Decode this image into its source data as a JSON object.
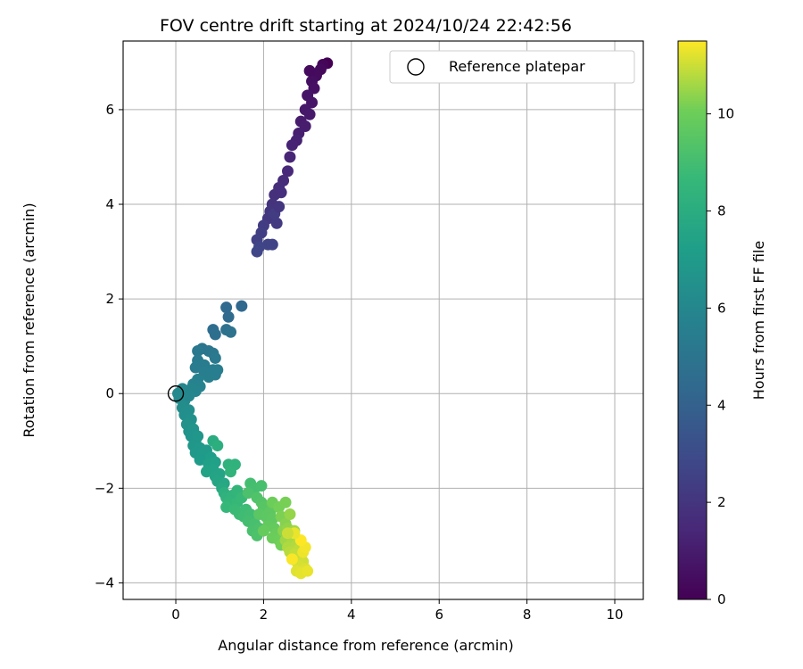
{
  "chart_data": {
    "type": "scatter",
    "title": "FOV centre drift starting at 2024/10/24 22:42:56",
    "xlabel": "Angular distance from reference (arcmin)",
    "ylabel": "Rotation from reference (arcmin)",
    "xlim": [
      -1.2,
      10.65
    ],
    "ylim": [
      -4.35,
      7.45
    ],
    "xticks": [
      0,
      2,
      4,
      6,
      8,
      10
    ],
    "yticks": [
      -4,
      -2,
      0,
      2,
      4,
      6
    ],
    "grid": true,
    "legend": {
      "position": "top-right",
      "label": "Reference platepar"
    },
    "colormap": "viridis",
    "colorbar": {
      "label": "Hours from first FF file",
      "range": [
        0,
        11.5
      ],
      "ticks": [
        0,
        2,
        4,
        6,
        8,
        10
      ]
    },
    "reference_point": {
      "x": 0,
      "y": 0
    },
    "series": [
      {
        "points": [
          {
            "x": 3.45,
            "y": 6.98,
            "h": 0.0
          },
          {
            "x": 3.35,
            "y": 6.95,
            "h": 0.2
          },
          {
            "x": 3.3,
            "y": 6.85,
            "h": 0.3
          },
          {
            "x": 3.2,
            "y": 6.72,
            "h": 0.4
          },
          {
            "x": 3.1,
            "y": 6.6,
            "h": 0.5
          },
          {
            "x": 3.15,
            "y": 6.45,
            "h": 0.6
          },
          {
            "x": 3.05,
            "y": 6.82,
            "h": 0.35
          },
          {
            "x": 3.0,
            "y": 6.3,
            "h": 0.7
          },
          {
            "x": 3.1,
            "y": 6.15,
            "h": 0.75
          },
          {
            "x": 2.95,
            "y": 6.0,
            "h": 0.85
          },
          {
            "x": 3.05,
            "y": 5.9,
            "h": 0.9
          },
          {
            "x": 2.85,
            "y": 5.75,
            "h": 1.0
          },
          {
            "x": 2.95,
            "y": 5.65,
            "h": 1.05
          },
          {
            "x": 2.8,
            "y": 5.5,
            "h": 1.1
          },
          {
            "x": 2.75,
            "y": 5.35,
            "h": 1.2
          },
          {
            "x": 2.65,
            "y": 5.25,
            "h": 1.25
          },
          {
            "x": 2.6,
            "y": 5.0,
            "h": 1.35
          },
          {
            "x": 2.55,
            "y": 4.7,
            "h": 1.5
          },
          {
            "x": 2.45,
            "y": 4.5,
            "h": 1.6
          },
          {
            "x": 2.35,
            "y": 4.35,
            "h": 1.7
          },
          {
            "x": 2.25,
            "y": 4.2,
            "h": 1.8
          },
          {
            "x": 2.2,
            "y": 4.0,
            "h": 1.9
          },
          {
            "x": 2.15,
            "y": 3.85,
            "h": 2.0
          },
          {
            "x": 2.1,
            "y": 3.7,
            "h": 2.1
          },
          {
            "x": 2.3,
            "y": 3.6,
            "h": 2.2
          },
          {
            "x": 2.0,
            "y": 3.55,
            "h": 2.3
          },
          {
            "x": 1.95,
            "y": 3.4,
            "h": 2.4
          },
          {
            "x": 1.85,
            "y": 3.25,
            "h": 2.5
          },
          {
            "x": 2.1,
            "y": 3.15,
            "h": 2.6
          },
          {
            "x": 2.2,
            "y": 3.15,
            "h": 2.6
          },
          {
            "x": 1.9,
            "y": 3.1,
            "h": 2.7
          },
          {
            "x": 1.85,
            "y": 3.0,
            "h": 2.8
          },
          {
            "x": 2.25,
            "y": 3.8,
            "h": 2.3
          },
          {
            "x": 2.35,
            "y": 3.95,
            "h": 2.0
          },
          {
            "x": 2.4,
            "y": 4.25,
            "h": 1.75
          },
          {
            "x": 1.5,
            "y": 1.85,
            "h": 4.3
          },
          {
            "x": 1.15,
            "y": 1.82,
            "h": 4.4
          },
          {
            "x": 1.2,
            "y": 1.62,
            "h": 4.5
          },
          {
            "x": 0.85,
            "y": 1.35,
            "h": 4.6
          },
          {
            "x": 0.9,
            "y": 1.25,
            "h": 4.7
          },
          {
            "x": 1.15,
            "y": 1.35,
            "h": 4.8
          },
          {
            "x": 1.25,
            "y": 1.3,
            "h": 4.9
          },
          {
            "x": 0.6,
            "y": 0.95,
            "h": 5.0
          },
          {
            "x": 0.75,
            "y": 0.9,
            "h": 5.1
          },
          {
            "x": 0.85,
            "y": 0.85,
            "h": 5.15
          },
          {
            "x": 0.5,
            "y": 0.9,
            "h": 5.2
          },
          {
            "x": 0.9,
            "y": 0.75,
            "h": 5.25
          },
          {
            "x": 0.5,
            "y": 0.7,
            "h": 5.3
          },
          {
            "x": 0.65,
            "y": 0.6,
            "h": 5.35
          },
          {
            "x": 0.45,
            "y": 0.55,
            "h": 5.4
          },
          {
            "x": 0.85,
            "y": 0.5,
            "h": 5.45
          },
          {
            "x": 0.95,
            "y": 0.5,
            "h": 5.5
          },
          {
            "x": 0.9,
            "y": 0.4,
            "h": 5.55
          },
          {
            "x": 0.65,
            "y": 0.45,
            "h": 5.5
          },
          {
            "x": 0.75,
            "y": 0.35,
            "h": 5.6
          },
          {
            "x": 0.5,
            "y": 0.3,
            "h": 5.7
          },
          {
            "x": 0.4,
            "y": 0.2,
            "h": 5.75
          },
          {
            "x": 0.55,
            "y": 0.15,
            "h": 5.8
          },
          {
            "x": 0.45,
            "y": 0.05,
            "h": 5.85
          },
          {
            "x": 0.35,
            "y": 0.1,
            "h": 5.9
          },
          {
            "x": 0.15,
            "y": 0.1,
            "h": 6.0
          },
          {
            "x": 0.05,
            "y": 0.0,
            "h": 6.1
          },
          {
            "x": 0.08,
            "y": -0.1,
            "h": 6.15
          },
          {
            "x": 0.2,
            "y": -0.15,
            "h": 6.2
          },
          {
            "x": 0.3,
            "y": -0.05,
            "h": 6.0
          },
          {
            "x": 0.15,
            "y": -0.3,
            "h": 6.3
          },
          {
            "x": 0.3,
            "y": -0.35,
            "h": 6.35
          },
          {
            "x": 0.2,
            "y": -0.45,
            "h": 6.4
          },
          {
            "x": 0.35,
            "y": -0.55,
            "h": 6.5
          },
          {
            "x": 0.25,
            "y": -0.65,
            "h": 6.55
          },
          {
            "x": 0.3,
            "y": -0.8,
            "h": 6.6
          },
          {
            "x": 0.4,
            "y": -0.75,
            "h": 6.65
          },
          {
            "x": 0.35,
            "y": -0.9,
            "h": 6.7
          },
          {
            "x": 0.45,
            "y": -1.0,
            "h": 6.75
          },
          {
            "x": 0.5,
            "y": -0.9,
            "h": 6.8
          },
          {
            "x": 0.4,
            "y": -1.1,
            "h": 6.85
          },
          {
            "x": 0.55,
            "y": -1.15,
            "h": 6.9
          },
          {
            "x": 0.45,
            "y": -1.25,
            "h": 6.95
          },
          {
            "x": 0.6,
            "y": -1.3,
            "h": 7.0
          },
          {
            "x": 0.7,
            "y": -1.2,
            "h": 7.05
          },
          {
            "x": 0.55,
            "y": -1.4,
            "h": 7.1
          },
          {
            "x": 0.8,
            "y": -1.35,
            "h": 7.2
          },
          {
            "x": 0.75,
            "y": -1.5,
            "h": 7.3
          },
          {
            "x": 0.9,
            "y": -1.45,
            "h": 7.35
          },
          {
            "x": 0.85,
            "y": -1.6,
            "h": 7.4
          },
          {
            "x": 0.7,
            "y": -1.65,
            "h": 7.45
          },
          {
            "x": 0.9,
            "y": -1.75,
            "h": 7.5
          },
          {
            "x": 1.0,
            "y": -1.7,
            "h": 7.55
          },
          {
            "x": 0.95,
            "y": -1.85,
            "h": 7.6
          },
          {
            "x": 1.1,
            "y": -1.9,
            "h": 7.7
          },
          {
            "x": 1.05,
            "y": -2.0,
            "h": 7.75
          },
          {
            "x": 0.85,
            "y": -1.0,
            "h": 8.0
          },
          {
            "x": 0.95,
            "y": -1.1,
            "h": 8.1
          },
          {
            "x": 1.2,
            "y": -1.5,
            "h": 8.3
          },
          {
            "x": 1.35,
            "y": -1.5,
            "h": 8.35
          },
          {
            "x": 1.25,
            "y": -1.65,
            "h": 8.4
          },
          {
            "x": 1.1,
            "y": -2.1,
            "h": 8.2
          },
          {
            "x": 1.15,
            "y": -2.2,
            "h": 8.3
          },
          {
            "x": 1.3,
            "y": -2.15,
            "h": 8.4
          },
          {
            "x": 1.4,
            "y": -2.05,
            "h": 8.5
          },
          {
            "x": 1.2,
            "y": -2.3,
            "h": 8.5
          },
          {
            "x": 1.15,
            "y": -2.4,
            "h": 8.6
          },
          {
            "x": 1.4,
            "y": -2.3,
            "h": 8.65
          },
          {
            "x": 1.5,
            "y": -2.2,
            "h": 8.7
          },
          {
            "x": 1.35,
            "y": -2.45,
            "h": 8.75
          },
          {
            "x": 1.45,
            "y": -2.55,
            "h": 8.8
          },
          {
            "x": 1.6,
            "y": -2.45,
            "h": 8.85
          },
          {
            "x": 1.55,
            "y": -2.6,
            "h": 8.9
          },
          {
            "x": 1.7,
            "y": -2.55,
            "h": 8.95
          },
          {
            "x": 1.65,
            "y": -2.7,
            "h": 9.0
          },
          {
            "x": 1.8,
            "y": -2.75,
            "h": 9.1
          },
          {
            "x": 1.75,
            "y": -2.9,
            "h": 9.15
          },
          {
            "x": 1.9,
            "y": -2.85,
            "h": 9.2
          },
          {
            "x": 1.85,
            "y": -3.0,
            "h": 9.25
          },
          {
            "x": 1.7,
            "y": -1.9,
            "h": 9.0
          },
          {
            "x": 1.8,
            "y": -2.0,
            "h": 9.05
          },
          {
            "x": 1.95,
            "y": -1.95,
            "h": 9.1
          },
          {
            "x": 1.65,
            "y": -2.1,
            "h": 9.2
          },
          {
            "x": 1.85,
            "y": -2.2,
            "h": 9.3
          },
          {
            "x": 1.95,
            "y": -2.3,
            "h": 9.4
          },
          {
            "x": 2.0,
            "y": -2.4,
            "h": 9.5
          },
          {
            "x": 1.9,
            "y": -2.55,
            "h": 9.55
          },
          {
            "x": 2.05,
            "y": -2.6,
            "h": 9.6
          },
          {
            "x": 2.15,
            "y": -2.5,
            "h": 9.65
          },
          {
            "x": 2.2,
            "y": -2.65,
            "h": 9.7
          },
          {
            "x": 2.1,
            "y": -2.8,
            "h": 9.75
          },
          {
            "x": 2.25,
            "y": -2.85,
            "h": 9.8
          },
          {
            "x": 2.0,
            "y": -2.9,
            "h": 9.85
          },
          {
            "x": 2.3,
            "y": -2.95,
            "h": 9.9
          },
          {
            "x": 2.2,
            "y": -3.05,
            "h": 9.95
          },
          {
            "x": 2.35,
            "y": -3.1,
            "h": 10.0
          },
          {
            "x": 2.45,
            "y": -3.0,
            "h": 10.05
          },
          {
            "x": 2.4,
            "y": -3.2,
            "h": 10.1
          },
          {
            "x": 2.2,
            "y": -2.3,
            "h": 10.0
          },
          {
            "x": 2.35,
            "y": -2.4,
            "h": 10.1
          },
          {
            "x": 2.5,
            "y": -2.3,
            "h": 10.15
          },
          {
            "x": 2.4,
            "y": -2.6,
            "h": 10.2
          },
          {
            "x": 2.5,
            "y": -2.75,
            "h": 10.3
          },
          {
            "x": 2.45,
            "y": -2.9,
            "h": 10.35
          },
          {
            "x": 2.55,
            "y": -2.85,
            "h": 10.4
          },
          {
            "x": 2.6,
            "y": -2.55,
            "h": 10.45
          },
          {
            "x": 2.6,
            "y": -3.0,
            "h": 10.5
          },
          {
            "x": 2.5,
            "y": -3.1,
            "h": 10.55
          },
          {
            "x": 2.7,
            "y": -2.9,
            "h": 10.6
          },
          {
            "x": 2.65,
            "y": -3.15,
            "h": 10.65
          },
          {
            "x": 2.55,
            "y": -3.25,
            "h": 10.7
          },
          {
            "x": 2.75,
            "y": -3.2,
            "h": 10.75
          },
          {
            "x": 2.6,
            "y": -3.35,
            "h": 10.8
          },
          {
            "x": 2.8,
            "y": -3.3,
            "h": 10.85
          },
          {
            "x": 2.7,
            "y": -3.4,
            "h": 10.9
          },
          {
            "x": 2.85,
            "y": -3.45,
            "h": 10.95
          },
          {
            "x": 2.75,
            "y": -3.55,
            "h": 11.0
          },
          {
            "x": 2.9,
            "y": -3.55,
            "h": 11.05
          },
          {
            "x": 2.8,
            "y": -3.65,
            "h": 11.1
          },
          {
            "x": 2.95,
            "y": -3.7,
            "h": 11.15
          },
          {
            "x": 2.75,
            "y": -3.75,
            "h": 11.2
          },
          {
            "x": 2.85,
            "y": -3.8,
            "h": 11.25
          },
          {
            "x": 3.0,
            "y": -3.75,
            "h": 11.3
          },
          {
            "x": 2.9,
            "y": -3.35,
            "h": 11.35
          },
          {
            "x": 2.95,
            "y": -3.25,
            "h": 11.4
          },
          {
            "x": 2.65,
            "y": -3.5,
            "h": 11.45
          },
          {
            "x": 2.85,
            "y": -3.1,
            "h": 11.5
          },
          {
            "x": 2.7,
            "y": -2.95,
            "h": 11.3
          },
          {
            "x": 2.55,
            "y": -2.95,
            "h": 11.0
          }
        ]
      }
    ]
  }
}
